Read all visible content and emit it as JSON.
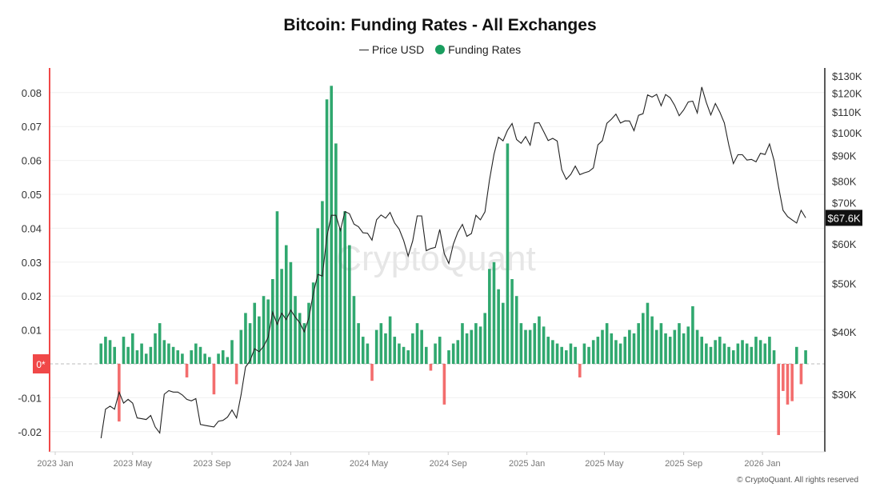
{
  "chart_data": {
    "type": "bar+line",
    "title": "Bitcoin: Funding Rates - All Exchanges",
    "legend": {
      "placement": "top-center",
      "items": [
        "Price USD",
        "Funding Rates"
      ]
    },
    "watermark": "CryptoQuant",
    "copyright": "© CryptoQuant. All rights reserved",
    "x_ticks": [
      "2023 Jan",
      "2023 May",
      "2023 Sep",
      "2024 Jan",
      "2024 May",
      "2024 Sep",
      "2025 Jan",
      "2025 May",
      "2025 Sep",
      "2026 Jan"
    ],
    "x_tick_dates": [
      "2023-01-01",
      "2023-05-01",
      "2023-09-01",
      "2024-01-01",
      "2024-05-01",
      "2024-09-01",
      "2025-01-01",
      "2025-05-01",
      "2025-09-01",
      "2026-01-01"
    ],
    "left_axis": {
      "ticks": [
        "0.08",
        "0.07",
        "0.06",
        "0.05",
        "0.04",
        "0.03",
        "0.02",
        "0.01",
        "-0.01",
        "-0.02"
      ],
      "tick_values": [
        0.08,
        0.07,
        0.06,
        0.05,
        0.04,
        0.03,
        0.02,
        0.01,
        -0.01,
        -0.02
      ],
      "zero_label": "0*",
      "range": [
        -0.026,
        0.088
      ]
    },
    "right_axis": {
      "scale": "log",
      "ticks": [
        "$130K",
        "$120K",
        "$110K",
        "$100K",
        "$90K",
        "$80K",
        "$70K",
        "$60K",
        "$50K",
        "$40K",
        "$30K"
      ],
      "tick_values": [
        130,
        120,
        110,
        100,
        90,
        80,
        70,
        60,
        50,
        40,
        30
      ],
      "current_label": "$67.6K"
    },
    "grid": true,
    "colors": {
      "positive": "#1a9e5f",
      "negative": "#f04848",
      "price": "#222222",
      "left_axis": "#f04848"
    },
    "dates": [
      "2023-03-13",
      "2023-03-20",
      "2023-03-27",
      "2023-04-03",
      "2023-04-10",
      "2023-04-17",
      "2023-04-24",
      "2023-05-01",
      "2023-05-08",
      "2023-05-15",
      "2023-05-22",
      "2023-05-29",
      "2023-06-05",
      "2023-06-12",
      "2023-06-19",
      "2023-06-26",
      "2023-07-03",
      "2023-07-10",
      "2023-07-17",
      "2023-07-24",
      "2023-07-31",
      "2023-08-07",
      "2023-08-14",
      "2023-08-21",
      "2023-08-28",
      "2023-09-04",
      "2023-09-11",
      "2023-09-18",
      "2023-09-25",
      "2023-10-02",
      "2023-10-09",
      "2023-10-16",
      "2023-10-23",
      "2023-10-30",
      "2023-11-06",
      "2023-11-13",
      "2023-11-20",
      "2023-11-27",
      "2023-12-04",
      "2023-12-11",
      "2023-12-18",
      "2023-12-25",
      "2024-01-01",
      "2024-01-08",
      "2024-01-15",
      "2024-01-22",
      "2024-01-29",
      "2024-02-05",
      "2024-02-12",
      "2024-02-19",
      "2024-02-26",
      "2024-03-04",
      "2024-03-11",
      "2024-03-18",
      "2024-03-25",
      "2024-04-01",
      "2024-04-08",
      "2024-04-15",
      "2024-04-22",
      "2024-04-29",
      "2024-05-06",
      "2024-05-13",
      "2024-05-20",
      "2024-05-27",
      "2024-06-03",
      "2024-06-10",
      "2024-06-17",
      "2024-06-24",
      "2024-07-01",
      "2024-07-08",
      "2024-07-15",
      "2024-07-22",
      "2024-07-29",
      "2024-08-05",
      "2024-08-12",
      "2024-08-19",
      "2024-08-26",
      "2024-09-02",
      "2024-09-09",
      "2024-09-16",
      "2024-09-23",
      "2024-09-30",
      "2024-10-07",
      "2024-10-14",
      "2024-10-21",
      "2024-10-28",
      "2024-11-04",
      "2024-11-11",
      "2024-11-18",
      "2024-11-25",
      "2024-12-02",
      "2024-12-09",
      "2024-12-16",
      "2024-12-23",
      "2024-12-30",
      "2025-01-06",
      "2025-01-13",
      "2025-01-20",
      "2025-01-27",
      "2025-02-03",
      "2025-02-10",
      "2025-02-17",
      "2025-02-24",
      "2025-03-03",
      "2025-03-10",
      "2025-03-17",
      "2025-03-24",
      "2025-03-31",
      "2025-04-07",
      "2025-04-14",
      "2025-04-21",
      "2025-04-28",
      "2025-05-05",
      "2025-05-12",
      "2025-05-19",
      "2025-05-26",
      "2025-06-02",
      "2025-06-09",
      "2025-06-16",
      "2025-06-23",
      "2025-06-30",
      "2025-07-07",
      "2025-07-14",
      "2025-07-21",
      "2025-07-28",
      "2025-08-04",
      "2025-08-11",
      "2025-08-18",
      "2025-08-25",
      "2025-09-01",
      "2025-09-08",
      "2025-09-15",
      "2025-09-22",
      "2025-09-29",
      "2025-10-06",
      "2025-10-13",
      "2025-10-20",
      "2025-10-27",
      "2025-11-03",
      "2025-11-10",
      "2025-11-17",
      "2025-11-24",
      "2025-12-01",
      "2025-12-08",
      "2025-12-15",
      "2025-12-22",
      "2025-12-29",
      "2026-01-05",
      "2026-01-12",
      "2026-01-19",
      "2026-01-26",
      "2026-02-02",
      "2026-02-09",
      "2026-02-16",
      "2026-02-23",
      "2026-03-02",
      "2026-03-09"
    ],
    "series": [
      {
        "name": "Price USD",
        "type": "line",
        "axis": "right",
        "unit": "K USD",
        "values": [
          24.5,
          28,
          28.4,
          28,
          30.3,
          28.8,
          29.3,
          28.8,
          26.9,
          26.8,
          26.7,
          27.2,
          25.8,
          25.1,
          30.0,
          30.5,
          30.3,
          30.3,
          29.9,
          29.3,
          29.1,
          29.4,
          26.1,
          26.0,
          25.9,
          25.8,
          26.5,
          26.6,
          27.0,
          27.9,
          26.9,
          29.9,
          34.0,
          35.0,
          37.0,
          36.5,
          37.4,
          39.0,
          43.8,
          41.4,
          43.6,
          42.3,
          44.2,
          42.8,
          41.7,
          40.0,
          42.6,
          47.7,
          52.1,
          51.7,
          62.0,
          68.4,
          68.4,
          63.8,
          69.6,
          68.9,
          65.7,
          64.9,
          63.1,
          63.0,
          61.0,
          67.0,
          68.5,
          67.5,
          69.3,
          66.0,
          64.2,
          60.9,
          56.7,
          60.8,
          68.2,
          68.2,
          58.1,
          58.7,
          59.0,
          64.1,
          57.3,
          54.8,
          59.9,
          63.3,
          65.6,
          62.1,
          62.9,
          68.4,
          67.0,
          69.5,
          80.4,
          90.6,
          98.0,
          96.4,
          101.2,
          104.4,
          97.0,
          95.3,
          98.3,
          94.5,
          104.6,
          104.8,
          100.6,
          96.5,
          97.5,
          96.3,
          84.4,
          80.7,
          82.6,
          85.8,
          82.5,
          83.2,
          83.7,
          85.1,
          94.6,
          96.5,
          104.5,
          106.5,
          109.0,
          104.6,
          105.7,
          105.6,
          101.0,
          108.4,
          109.2,
          119.1,
          117.9,
          119.4,
          113.3,
          119.3,
          117.5,
          113.5,
          108.2,
          111.1,
          115.3,
          115.7,
          109.6,
          123.5,
          115.0,
          108.6,
          114.5,
          110.0,
          104.7,
          94.4,
          86.8,
          90.4,
          90.4,
          88.2,
          88.5,
          87.5,
          91.0,
          90.5,
          95.0,
          88.0,
          78.0,
          70.0,
          68.0,
          67.0,
          66.0,
          70.0,
          67.6
        ]
      },
      {
        "name": "Funding Rates",
        "type": "bar",
        "axis": "left",
        "values": [
          0.006,
          0.008,
          0.007,
          0.005,
          -0.017,
          0.008,
          0.005,
          0.009,
          0.004,
          0.006,
          0.003,
          0.005,
          0.009,
          0.012,
          0.007,
          0.006,
          0.005,
          0.004,
          0.003,
          -0.004,
          0.004,
          0.006,
          0.005,
          0.003,
          0.002,
          -0.009,
          0.003,
          0.004,
          0.002,
          0.007,
          -0.006,
          0.01,
          0.015,
          0.012,
          0.018,
          0.014,
          0.02,
          0.019,
          0.025,
          0.045,
          0.028,
          0.035,
          0.03,
          0.02,
          0.015,
          0.012,
          0.018,
          0.024,
          0.04,
          0.048,
          0.078,
          0.082,
          0.065,
          0.04,
          0.045,
          0.035,
          0.02,
          0.012,
          0.008,
          0.006,
          -0.005,
          0.01,
          0.012,
          0.009,
          0.014,
          0.008,
          0.006,
          0.005,
          0.004,
          0.009,
          0.012,
          0.01,
          0.005,
          -0.002,
          0.006,
          0.008,
          -0.012,
          0.004,
          0.006,
          0.007,
          0.012,
          0.009,
          0.01,
          0.012,
          0.011,
          0.015,
          0.028,
          0.03,
          0.022,
          0.018,
          0.065,
          0.025,
          0.02,
          0.012,
          0.01,
          0.01,
          0.012,
          0.014,
          0.011,
          0.008,
          0.007,
          0.006,
          0.005,
          0.004,
          0.006,
          0.005,
          -0.004,
          0.006,
          0.005,
          0.007,
          0.008,
          0.01,
          0.012,
          0.009,
          0.007,
          0.006,
          0.008,
          0.01,
          0.009,
          0.012,
          0.015,
          0.018,
          0.014,
          0.01,
          0.012,
          0.009,
          0.008,
          0.01,
          0.012,
          0.009,
          0.011,
          0.017,
          0.01,
          0.008,
          0.006,
          0.005,
          0.007,
          0.008,
          0.006,
          0.005,
          0.004,
          0.006,
          0.007,
          0.006,
          0.005,
          0.008,
          0.007,
          0.006,
          0.008,
          0.004,
          -0.021,
          -0.008,
          -0.012,
          -0.011,
          0.005,
          -0.006,
          0.004
        ]
      }
    ]
  }
}
